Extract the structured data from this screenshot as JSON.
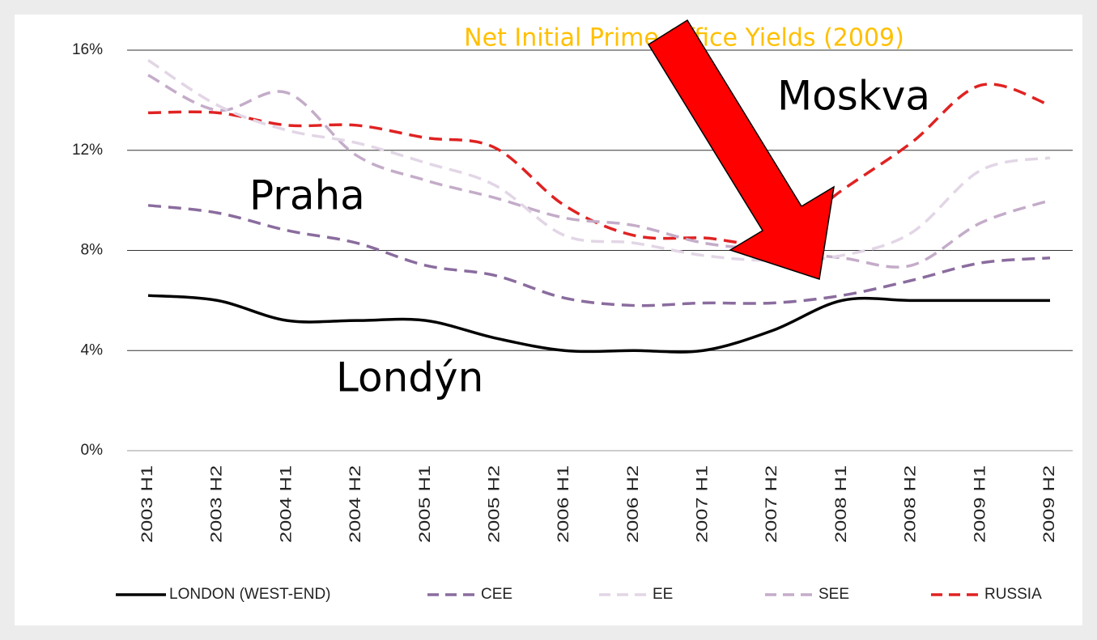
{
  "chart_data": {
    "type": "line",
    "title": "Net Initial Prime Office Yields (2009)",
    "annotations": [
      "Moskva",
      "Praha",
      "Londýn"
    ],
    "categories": [
      "2003 H1",
      "2003 H2",
      "2004 H1",
      "2004 H2",
      "2005 H1",
      "2005 H2",
      "2006 H1",
      "2006 H2",
      "2007 H1",
      "2007 H2",
      "2008 H1",
      "2008 H2",
      "2009 H1",
      "2009 H2"
    ],
    "series": [
      {
        "name": "LONDON (WEST-END)",
        "color": "#000000",
        "line_style": "solid",
        "values": [
          6.2,
          6.0,
          5.2,
          5.2,
          5.2,
          4.5,
          4.0,
          4.0,
          4.0,
          4.8,
          6.0,
          6.0,
          6.0,
          6.0
        ]
      },
      {
        "name": "CEE",
        "color": "#8a6c9e",
        "line_style": "dashed",
        "values": [
          9.8,
          9.5,
          8.8,
          8.3,
          7.4,
          7.0,
          6.1,
          5.8,
          5.9,
          5.9,
          6.2,
          6.8,
          7.5,
          7.7
        ]
      },
      {
        "name": "EE",
        "color": "#e2d6e6",
        "line_style": "dashed",
        "values": [
          15.6,
          13.8,
          12.8,
          12.3,
          11.5,
          10.6,
          8.6,
          8.3,
          7.8,
          7.6,
          7.8,
          8.7,
          11.2,
          11.7
        ]
      },
      {
        "name": "SEE",
        "color": "#c4acc9",
        "line_style": "dashed",
        "values": [
          15.0,
          13.6,
          14.3,
          11.8,
          10.8,
          10.1,
          9.3,
          9.0,
          8.3,
          8.0,
          7.7,
          7.4,
          9.1,
          10.0
        ]
      },
      {
        "name": "RUSSIA",
        "color": "#e02222",
        "line_style": "dashed",
        "values": [
          13.5,
          13.5,
          13.0,
          13.0,
          12.5,
          12.1,
          9.8,
          8.6,
          8.5,
          8.4,
          10.4,
          12.3,
          14.6,
          13.8
        ]
      }
    ],
    "ylim": [
      0,
      16
    ],
    "yticks": [
      {
        "value": 0,
        "label": "0%"
      },
      {
        "value": 4,
        "label": "4%"
      },
      {
        "value": 8,
        "label": "8%"
      },
      {
        "value": 12,
        "label": "12%"
      },
      {
        "value": 16,
        "label": "16%"
      }
    ],
    "grid": true,
    "legend": "bottom"
  }
}
